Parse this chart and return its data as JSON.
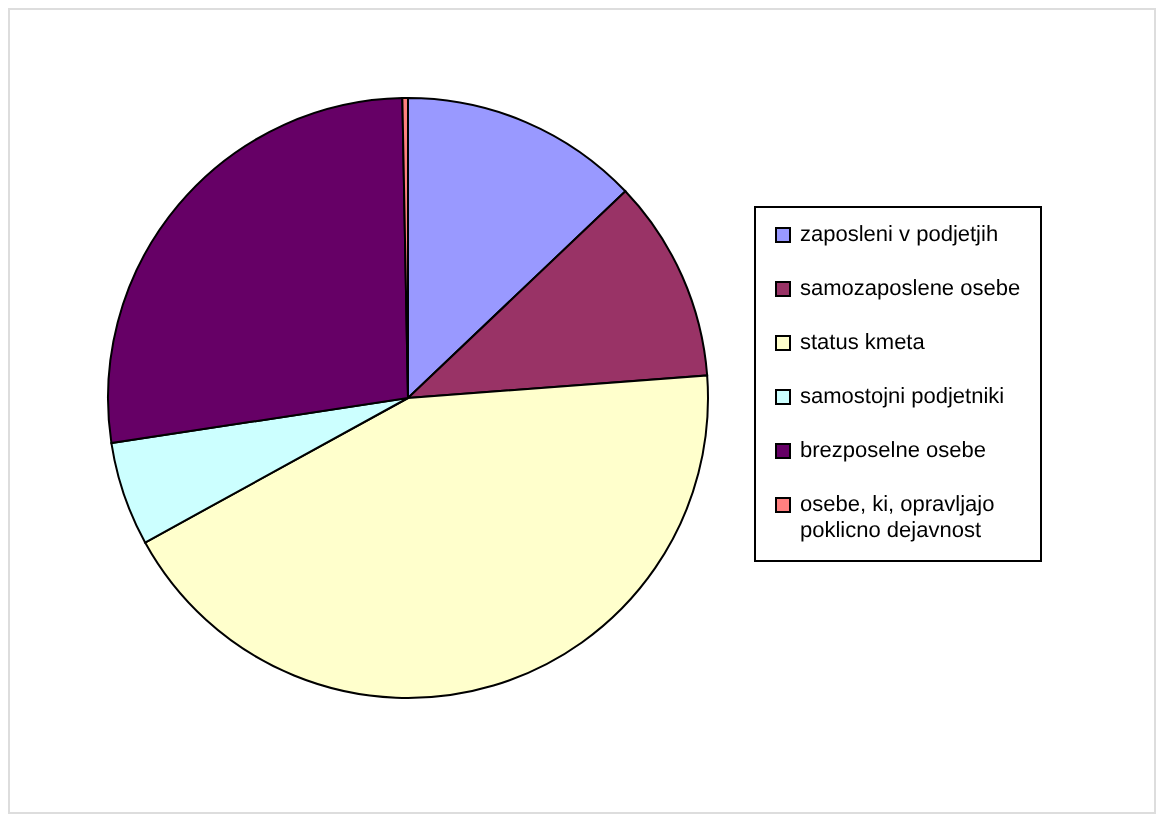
{
  "chart_data": {
    "type": "pie",
    "categories": [
      "zaposleni v podjetjih",
      "samozaposlene osebe",
      "status kmeta",
      "samostojni podjetniki",
      "brezposelne osebe",
      "osebe, ki, opravljajo poklicno dejavnost"
    ],
    "values": [
      12.9,
      10.9,
      43.2,
      5.6,
      27.1,
      0.3
    ],
    "colors": [
      "#9999ff",
      "#993366",
      "#ffffcc",
      "#ccffff",
      "#660066",
      "#ff8080"
    ],
    "legend": "right"
  }
}
